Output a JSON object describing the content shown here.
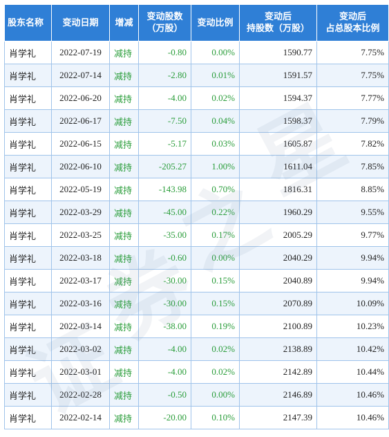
{
  "table": {
    "headers": [
      [
        "股东名称"
      ],
      [
        "变动日期"
      ],
      [
        "增减"
      ],
      [
        "变动股数",
        "（万股）"
      ],
      [
        "变动比例"
      ],
      [
        "变动后",
        "持股数（万股）"
      ],
      [
        "变动后",
        "占总股本比例"
      ]
    ],
    "rows": [
      [
        "肖学礼",
        "2022-07-19",
        "减持",
        "-0.80",
        "0.00%",
        "1590.77",
        "7.75%"
      ],
      [
        "肖学礼",
        "2022-07-14",
        "减持",
        "-2.80",
        "0.01%",
        "1591.57",
        "7.75%"
      ],
      [
        "肖学礼",
        "2022-06-20",
        "减持",
        "-4.00",
        "0.02%",
        "1594.37",
        "7.77%"
      ],
      [
        "肖学礼",
        "2022-06-17",
        "减持",
        "-7.50",
        "0.04%",
        "1598.37",
        "7.79%"
      ],
      [
        "肖学礼",
        "2022-06-15",
        "减持",
        "-5.17",
        "0.03%",
        "1605.87",
        "7.82%"
      ],
      [
        "肖学礼",
        "2022-06-10",
        "减持",
        "-205.27",
        "1.00%",
        "1611.04",
        "7.85%"
      ],
      [
        "肖学礼",
        "2022-05-19",
        "减持",
        "-143.98",
        "0.70%",
        "1816.31",
        "8.85%"
      ],
      [
        "肖学礼",
        "2022-03-29",
        "减持",
        "-45.00",
        "0.22%",
        "1960.29",
        "9.55%"
      ],
      [
        "肖学礼",
        "2022-03-25",
        "减持",
        "-35.00",
        "0.17%",
        "2005.29",
        "9.77%"
      ],
      [
        "肖学礼",
        "2022-03-18",
        "减持",
        "-0.60",
        "0.00%",
        "2040.29",
        "9.94%"
      ],
      [
        "肖学礼",
        "2022-03-17",
        "减持",
        "-30.00",
        "0.15%",
        "2040.89",
        "9.94%"
      ],
      [
        "肖学礼",
        "2022-03-16",
        "减持",
        "-30.00",
        "0.15%",
        "2070.89",
        "10.09%"
      ],
      [
        "肖学礼",
        "2022-03-14",
        "减持",
        "-38.00",
        "0.19%",
        "2100.89",
        "10.23%"
      ],
      [
        "肖学礼",
        "2022-03-02",
        "减持",
        "-4.00",
        "0.02%",
        "2138.89",
        "10.42%"
      ],
      [
        "肖学礼",
        "2022-03-01",
        "减持",
        "-4.00",
        "0.02%",
        "2142.89",
        "10.44%"
      ],
      [
        "肖学礼",
        "2022-02-28",
        "减持",
        "-0.50",
        "0.00%",
        "2146.89",
        "10.46%"
      ],
      [
        "肖学礼",
        "2022-02-14",
        "减持",
        "-20.00",
        "0.10%",
        "2147.39",
        "10.46%"
      ]
    ]
  },
  "watermark": [
    "证",
    "券",
    "之",
    "星"
  ],
  "colors": {
    "header_bg": "#2f7fd6",
    "border": "#9fc3ea",
    "stripe": "#edf4fc",
    "decrease_green": "#2a9d3a"
  }
}
